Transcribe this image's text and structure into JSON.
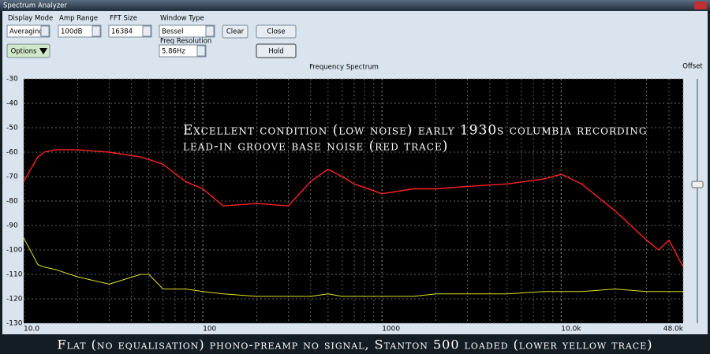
{
  "window_title": "Spectrum Analyzer",
  "controls": {
    "display_mode": {
      "label": "Display Mode",
      "value": "Averaging"
    },
    "amp_range": {
      "label": "Amp Range",
      "value": "100dB"
    },
    "fft_size": {
      "label": "FFT Size",
      "value": "16384"
    },
    "window_type": {
      "label": "Window Type",
      "value": "Bessel"
    },
    "freq_resolution": {
      "label": "Freq Resolution",
      "value": "5.86Hz"
    },
    "buttons": [
      "Clear",
      "Close",
      "Hold",
      "Options"
    ]
  },
  "offset_label": "Offset",
  "caption": "Flat (no equalisation) phono-preamp no signal, Stanton 500 loaded (lower yellow trace)",
  "chart_data": {
    "type": "line",
    "title": "Frequency Spectrum",
    "annotations": [
      "Excellent condition (low noise) early 1930s columbia recording",
      "lead-in groove base noise (red trace)"
    ],
    "xscale": "log",
    "grid": true,
    "x": [
      10,
      12,
      13,
      15,
      20,
      30,
      45,
      50,
      60,
      80,
      100,
      130,
      200,
      300,
      400,
      500,
      600,
      700,
      1000,
      1500,
      2000,
      3000,
      5000,
      8000,
      10000,
      13000,
      20000,
      30000,
      35000,
      40000,
      48000
    ],
    "series": [
      {
        "color": "#ff2020",
        "values": [
          -72,
          -62,
          -60,
          -59,
          -59,
          -60,
          -62,
          -63,
          -65,
          -72,
          -75,
          -82,
          -81,
          -82,
          -72,
          -67,
          -70,
          -73,
          -77,
          -75,
          -75,
          -74,
          -73,
          -71,
          -69,
          -73,
          -84,
          -96,
          -100,
          -96,
          -107
        ]
      },
      {
        "color": "#e0e020",
        "values": [
          -95,
          -106,
          -107,
          -108,
          -111,
          -114,
          -110,
          -110,
          -116,
          -116,
          -117,
          -118,
          -119,
          -119,
          -119,
          -118,
          -119,
          -119,
          -119,
          -119,
          -118,
          -118,
          -118,
          -117,
          -117,
          -117,
          -116,
          -117,
          -117,
          -117,
          -117
        ]
      }
    ],
    "xlim": [
      10,
      48000
    ],
    "xticks": [
      {
        "value": 10,
        "label": "10.0"
      },
      100,
      1000,
      {
        "value": 10000,
        "label": "10.0k"
      },
      {
        "value": 48000,
        "label": "48.0k"
      }
    ],
    "xticks_minor": [
      20,
      30,
      40,
      50,
      60,
      70,
      80,
      90,
      200,
      300,
      400,
      500,
      600,
      700,
      800,
      900,
      2000,
      3000,
      4000,
      5000,
      6000,
      7000,
      8000,
      9000,
      20000,
      30000,
      40000
    ],
    "ylim": [
      -130,
      -30
    ],
    "yticks": [
      -30,
      -40,
      -50,
      -60,
      -70,
      -80,
      -90,
      -100,
      -110,
      -120,
      -130
    ]
  }
}
